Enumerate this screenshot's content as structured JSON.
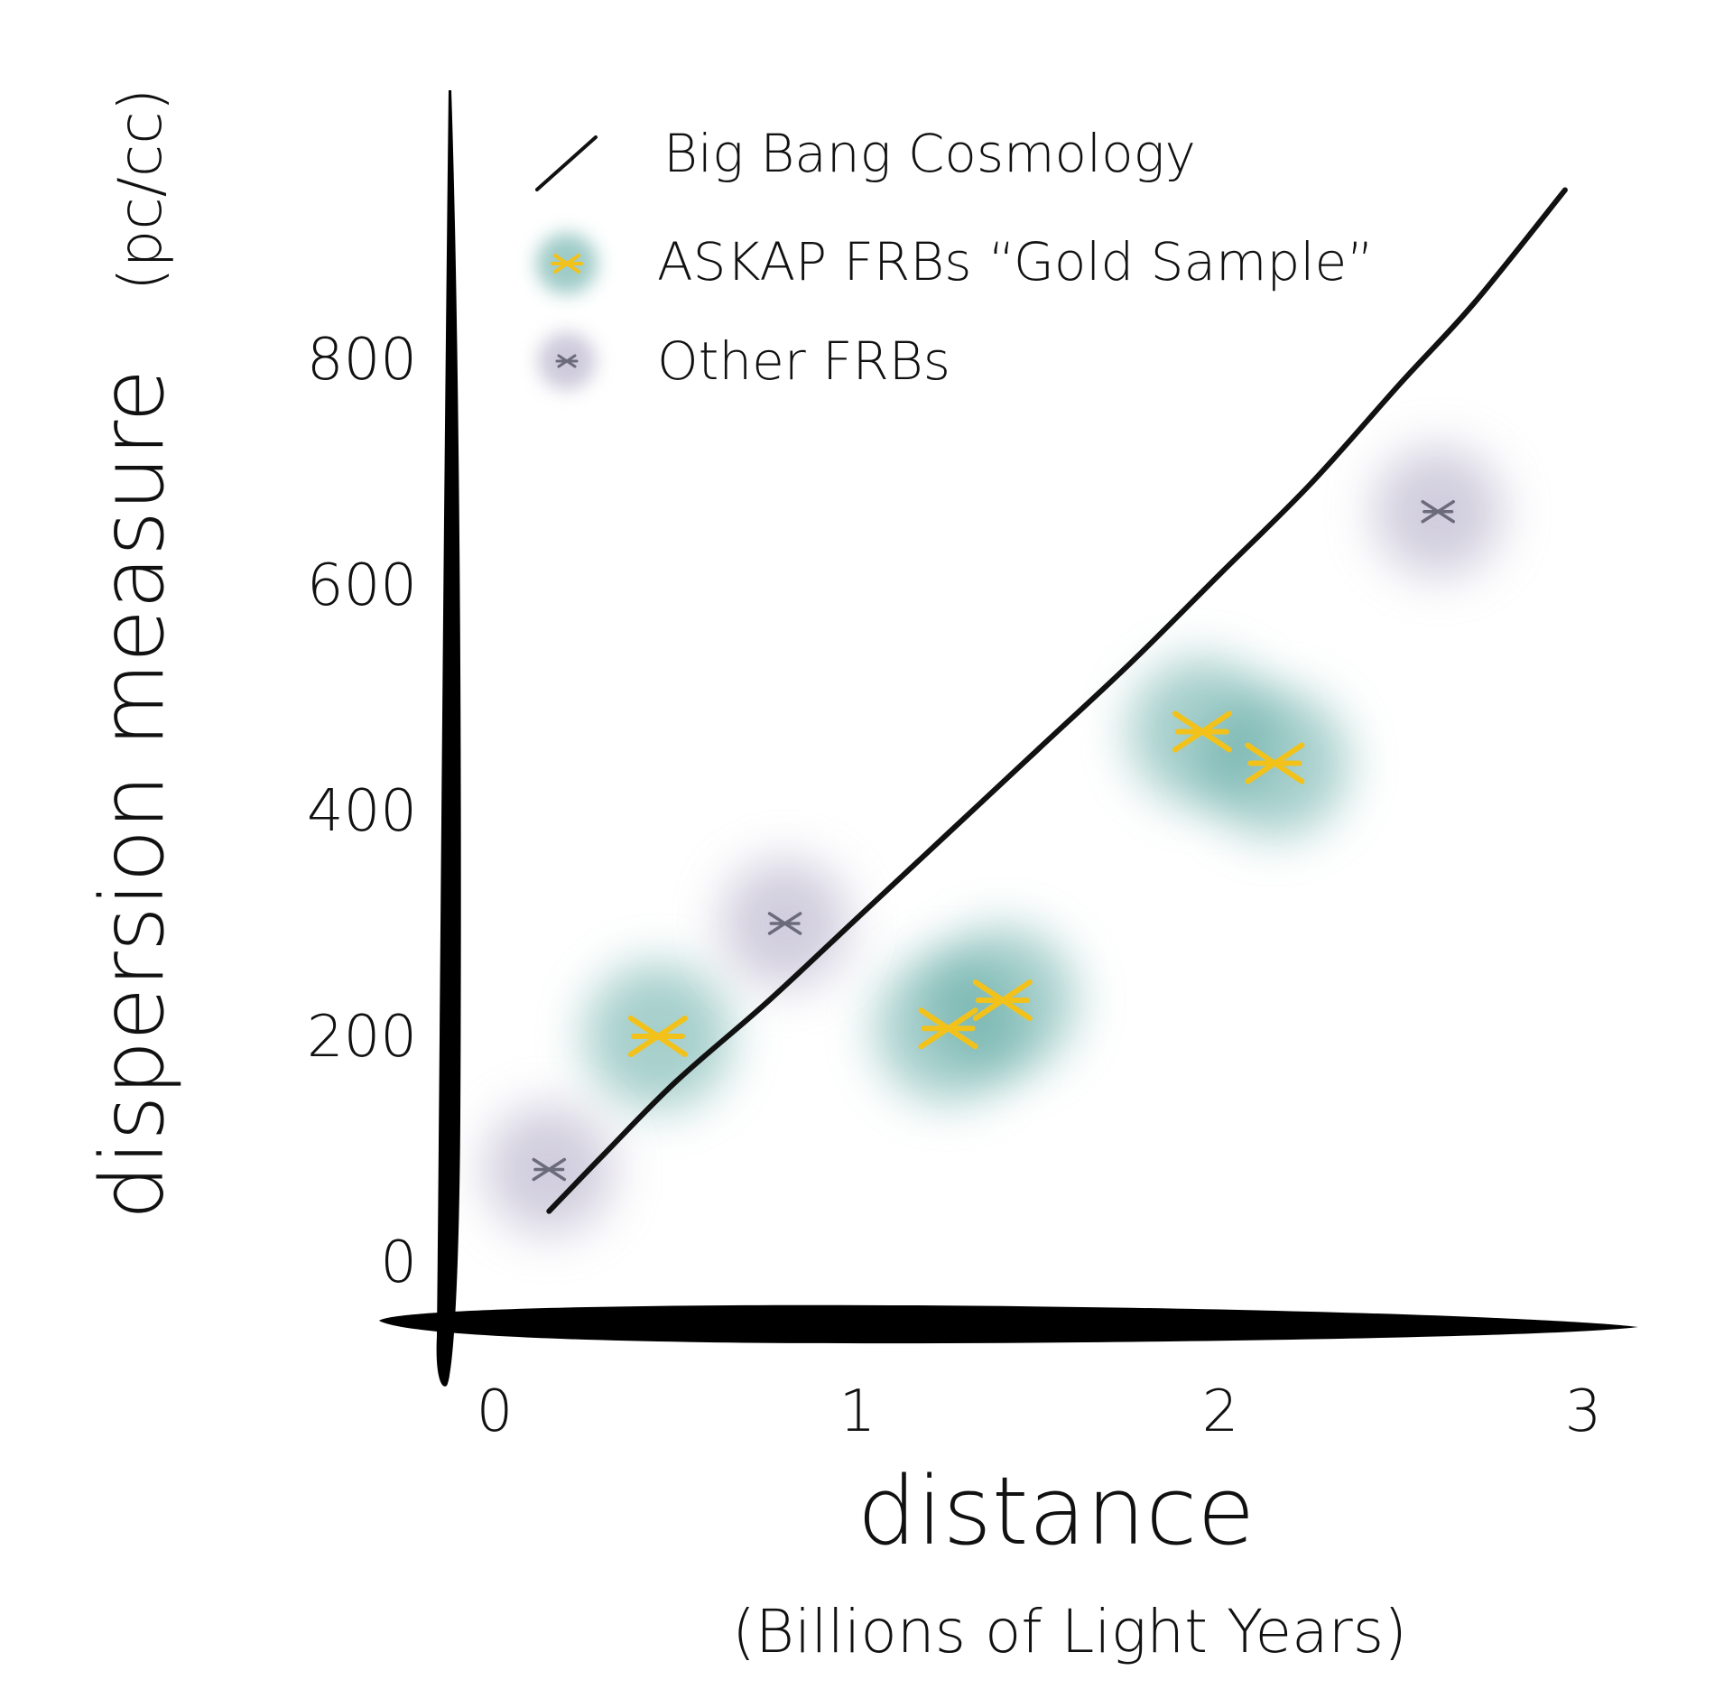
{
  "chart_data": {
    "type": "scatter",
    "title": "",
    "xlabel": "distance",
    "xlabel_sub": "(Billions of Light Years)",
    "ylabel": "dispersion measure",
    "ylabel_unit": "(pc/cc)",
    "xlim": [
      0,
      3.2
    ],
    "ylim": [
      0,
      850
    ],
    "x_ticks": [
      "0",
      "1",
      "2",
      "3"
    ],
    "y_ticks": [
      "0",
      "200",
      "400",
      "600",
      "800"
    ],
    "grid": false,
    "legend_position": "top-left",
    "legend": [
      {
        "label": "Big Bang Cosmology",
        "type": "line",
        "color": "#111111"
      },
      {
        "label": "ASKAP FRBs “Gold Sample”",
        "type": "marker",
        "color": "#f2c21b",
        "glow": "#5fa9a3"
      },
      {
        "label": "Other FRBs",
        "type": "marker",
        "color": "#6b6b7b",
        "glow": "#b9b4cc"
      }
    ],
    "series": [
      {
        "name": "Big Bang Cosmology",
        "kind": "line",
        "color": "#111111",
        "x": [
          0.15,
          0.3,
          0.5,
          0.75,
          1.0,
          1.25,
          1.5,
          1.75,
          2.0,
          2.25,
          2.5,
          2.7,
          2.95
        ],
        "y": [
          45,
          95,
          160,
          230,
          305,
          380,
          455,
          530,
          610,
          690,
          780,
          850,
          950
        ]
      },
      {
        "name": "ASKAP FRBs “Gold Sample”",
        "kind": "marker",
        "color": "#f2c21b",
        "glow": "#5fa9a3",
        "x": [
          0.45,
          1.25,
          1.4,
          1.95,
          2.15
        ],
        "y": [
          200,
          207,
          232,
          470,
          442
        ]
      },
      {
        "name": "Other FRBs",
        "kind": "marker",
        "color": "#6b6b7b",
        "glow": "#b9b4cc",
        "x": [
          0.15,
          0.8,
          2.6
        ],
        "y": [
          82,
          300,
          665
        ]
      }
    ]
  }
}
